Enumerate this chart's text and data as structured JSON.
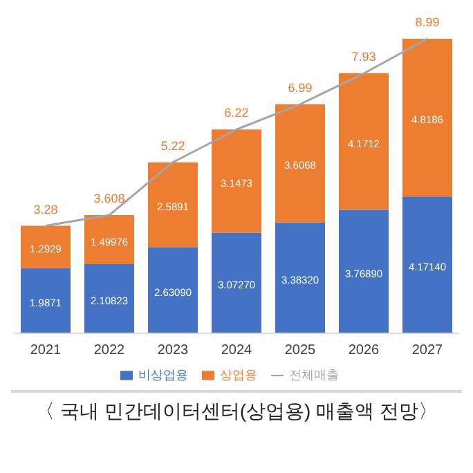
{
  "chart_data": {
    "type": "bar",
    "title": "〈 국내 민간데이터센터(상업용) 매출액 전망〉",
    "stacked": true,
    "categories": [
      "2021",
      "2022",
      "2023",
      "2024",
      "2025",
      "2026",
      "2027"
    ],
    "series": [
      {
        "name": "비상업용",
        "color": "#4472c4",
        "values": [
          1.9871,
          2.10823,
          2.6309,
          3.0727,
          3.3832,
          3.7689,
          4.1714
        ],
        "value_labels": [
          "1.9871",
          "2.10823",
          "2.63090",
          "3.07270",
          "3.38320",
          "3.76890",
          "4.17140"
        ]
      },
      {
        "name": "상업용",
        "color": "#ed7d31",
        "values": [
          1.2929,
          1.49976,
          2.5891,
          3.1473,
          3.6068,
          4.1712,
          4.8186
        ],
        "value_labels": [
          "1.2929",
          "1.49976",
          "2.5891",
          "3.1473",
          "3.6068",
          "4.1712",
          "4.8186"
        ]
      },
      {
        "name": "전체매출",
        "type": "line",
        "color": "#a5a5a5",
        "values": [
          3.28,
          3.608,
          5.22,
          6.22,
          6.99,
          7.93,
          8.99
        ],
        "value_labels": [
          "3.28",
          "3.608",
          "5.22",
          "6.22",
          "6.99",
          "7.93",
          "8.99"
        ]
      }
    ],
    "legend": "bottom",
    "marker": "none"
  }
}
